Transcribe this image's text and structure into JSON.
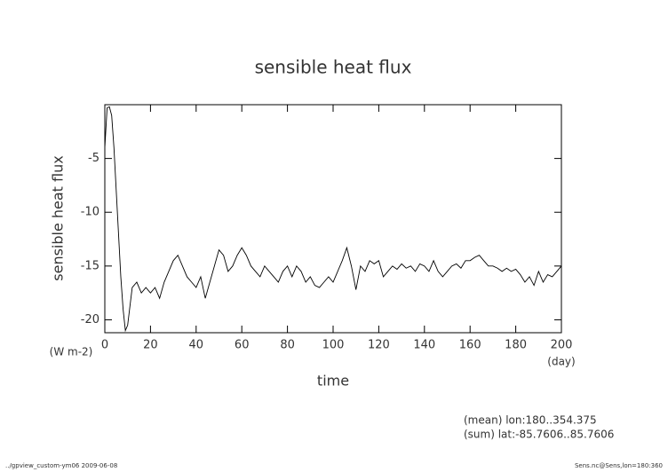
{
  "chart_data": {
    "type": "line",
    "title": "sensible heat flux",
    "ylabel": "sensible heat flux",
    "yunits": "(W m-2)",
    "xlabel": "time",
    "xunits": "(day)",
    "annotations": [
      "(mean) lon:180..354.375",
      "(sum) lat:-85.7606..85.7606"
    ],
    "footer_left": "../gpview_custom-ym06  2009-06-08",
    "footer_right": "Sens.nc@Sens,lon=180:360",
    "xlim": [
      0,
      200
    ],
    "ylim": [
      -21.2,
      0
    ],
    "xticks": [
      0,
      20,
      40,
      60,
      80,
      100,
      120,
      140,
      160,
      180,
      200
    ],
    "yticks": [
      -20,
      -15,
      -10,
      -5
    ],
    "x": [
      0,
      1,
      2,
      3,
      4,
      5,
      6,
      7,
      8,
      9,
      10,
      12,
      14,
      16,
      18,
      20,
      22,
      24,
      26,
      28,
      30,
      32,
      34,
      36,
      38,
      40,
      42,
      44,
      46,
      48,
      50,
      52,
      54,
      56,
      58,
      60,
      62,
      64,
      66,
      68,
      70,
      72,
      74,
      76,
      78,
      80,
      82,
      84,
      86,
      88,
      90,
      92,
      94,
      96,
      98,
      100,
      102,
      104,
      106,
      108,
      110,
      112,
      114,
      116,
      118,
      120,
      122,
      124,
      126,
      128,
      130,
      132,
      134,
      136,
      138,
      140,
      142,
      144,
      146,
      148,
      150,
      152,
      154,
      156,
      158,
      160,
      162,
      164,
      166,
      168,
      170,
      172,
      174,
      176,
      178,
      180,
      182,
      184,
      186,
      188,
      190,
      192,
      194,
      196,
      198,
      200
    ],
    "series": [
      {
        "name": "sensible heat flux",
        "color": "#000000",
        "values": [
          -4,
          -0.3,
          -0.2,
          -1,
          -4,
          -8,
          -12,
          -16,
          -19,
          -21,
          -20.5,
          -17,
          -16.5,
          -17.5,
          -17,
          -17.5,
          -17,
          -18,
          -16.5,
          -15.5,
          -14.5,
          -14,
          -15,
          -16,
          -16.5,
          -17,
          -16,
          -18,
          -16.5,
          -15,
          -13.5,
          -14,
          -15.5,
          -15,
          -14,
          -13.3,
          -14,
          -15,
          -15.5,
          -16,
          -15,
          -15.5,
          -16,
          -16.5,
          -15.5,
          -15,
          -16,
          -15,
          -15.5,
          -16.5,
          -16,
          -16.8,
          -17,
          -16.5,
          -16,
          -16.5,
          -15.5,
          -14.5,
          -13.3,
          -15,
          -17.2,
          -15,
          -15.5,
          -14.5,
          -14.8,
          -14.5,
          -16,
          -15.5,
          -15,
          -15.3,
          -14.8,
          -15.2,
          -15,
          -15.5,
          -14.8,
          -15,
          -15.5,
          -14.5,
          -15.5,
          -16,
          -15.5,
          -15,
          -14.8,
          -15.2,
          -14.5,
          -14.5,
          -14.2,
          -14,
          -14.5,
          -15,
          -15,
          -15.2,
          -15.5,
          -15.2,
          -15.5,
          -15.3,
          -15.8,
          -16.5,
          -16,
          -16.8,
          -15.5,
          -16.5,
          -15.8,
          -16,
          -15.5,
          -15
        ]
      }
    ]
  }
}
